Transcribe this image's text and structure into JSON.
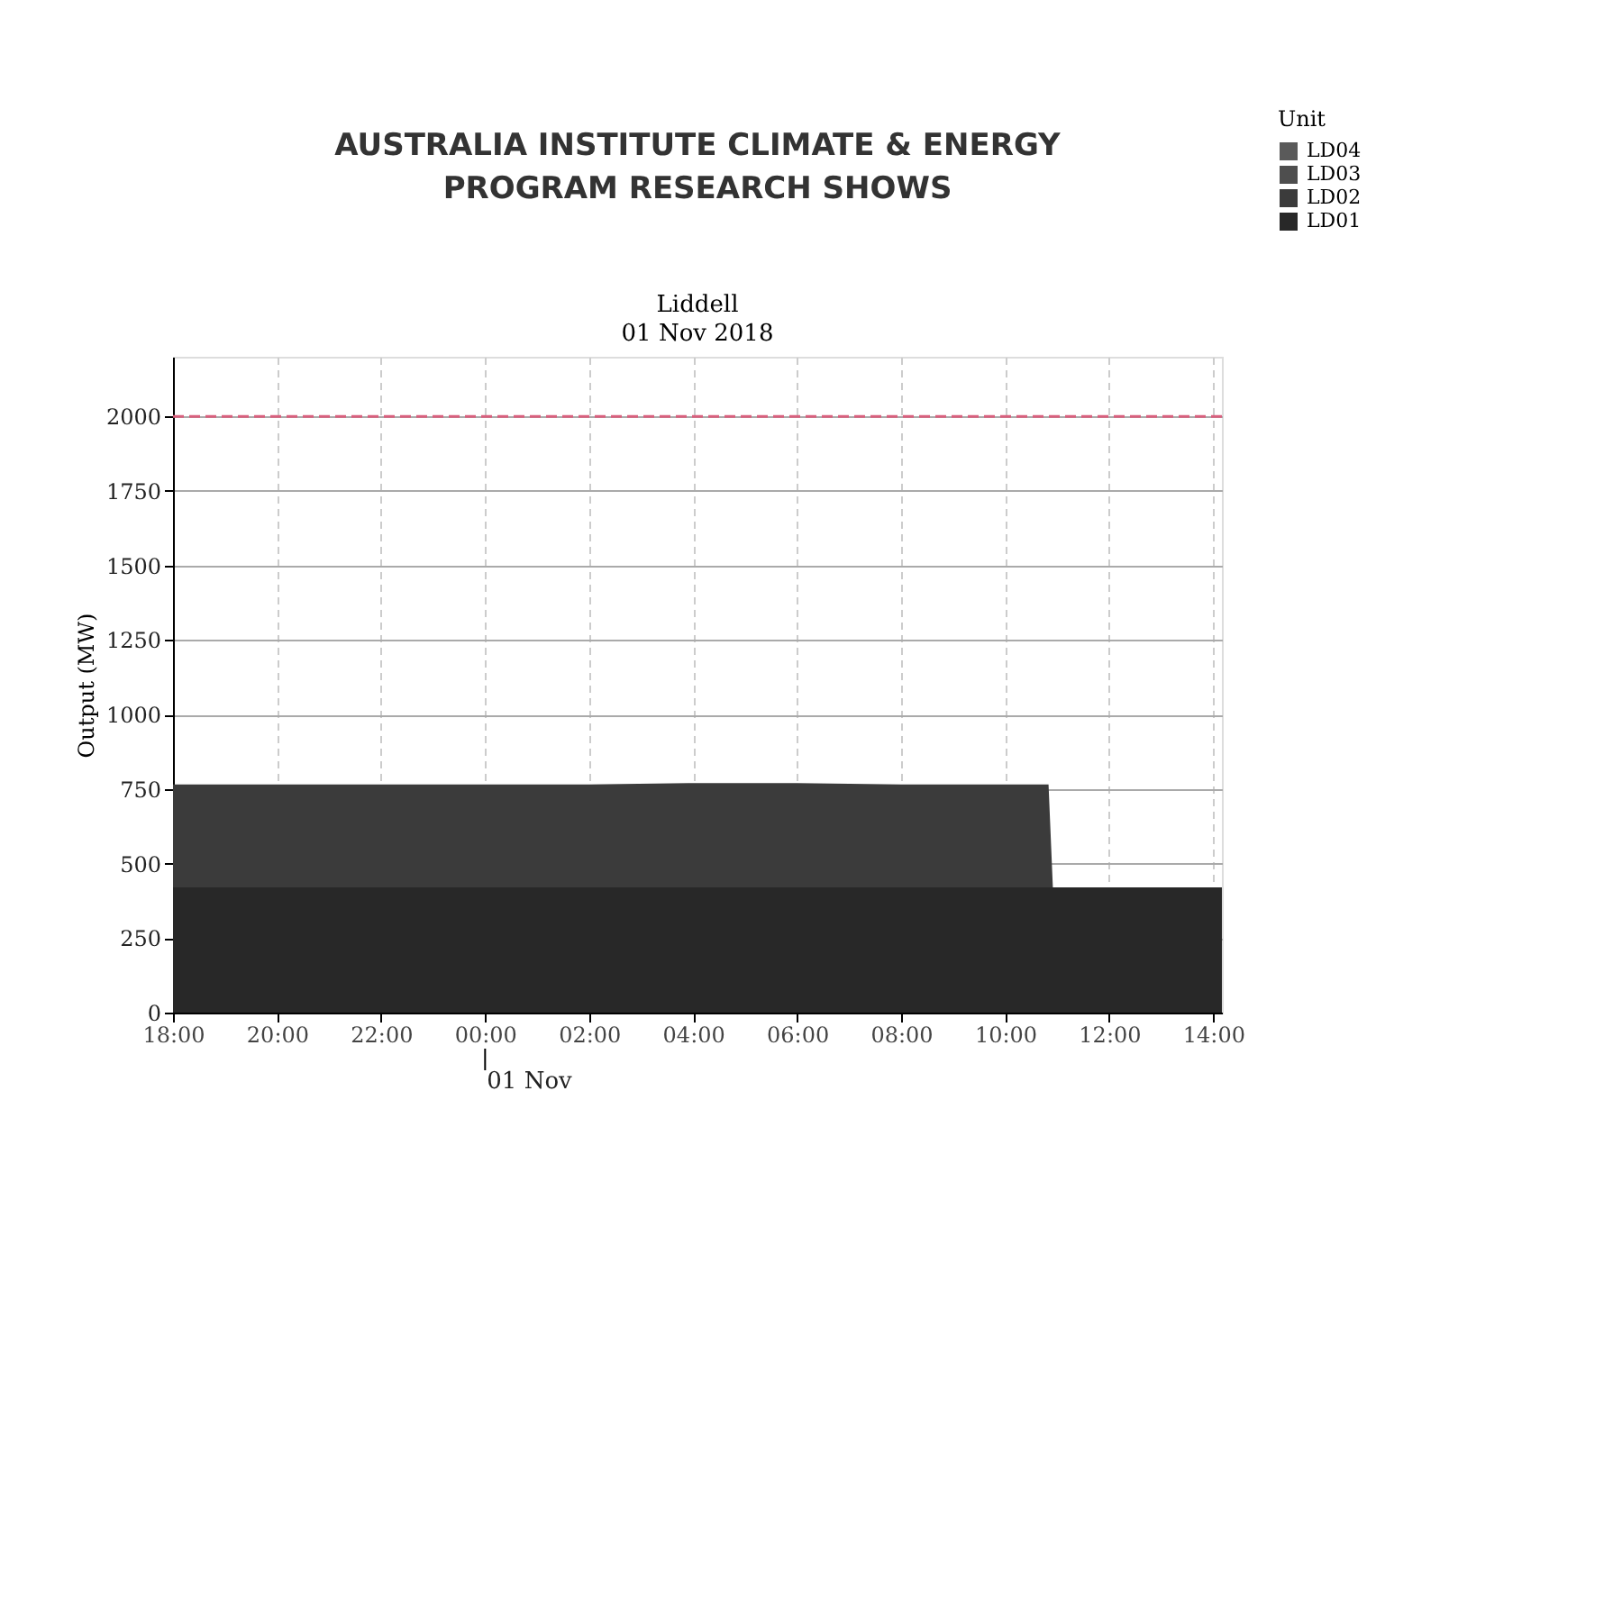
{
  "chart_data": {
    "type": "area",
    "stacked": true,
    "title": "Liddell",
    "subtitle": "01 Nov 2018",
    "annotations": [
      "AUSTRALIA INSTITUTE CLIMATE & ENERGY PROGRAM RESEARCH SHOWS",
      "01 Nov"
    ],
    "ylabel": "Output (MW)",
    "legend_title": "Unit",
    "legend": "right",
    "x": [
      "2018-10-31T18:00",
      "2018-10-31T20:00",
      "2018-10-31T22:00",
      "2018-11-01T00:00",
      "2018-11-01T02:00",
      "2018-11-01T04:00",
      "2018-11-01T06:00",
      "2018-11-01T08:00",
      "2018-11-01T10:00",
      "2018-11-01T10:50",
      "2018-11-01T10:55",
      "2018-11-01T12:00",
      "2018-11-01T14:10"
    ],
    "series": [
      {
        "name": "LD04",
        "color": "#5a5a5a",
        "values": [
          null,
          null,
          null,
          null,
          null,
          null,
          null,
          null,
          null,
          null,
          null,
          null,
          null
        ]
      },
      {
        "name": "LD03",
        "color": "#4e4e4e",
        "values": [
          null,
          null,
          null,
          null,
          null,
          null,
          null,
          null,
          null,
          null,
          null,
          null,
          null
        ]
      },
      {
        "name": "LD02",
        "color": "#3b3b3b",
        "values": [
          345,
          345,
          345,
          345,
          345,
          350,
          350,
          345,
          345,
          345,
          0,
          0,
          0
        ]
      },
      {
        "name": "LD01",
        "color": "#282828",
        "values": [
          420,
          420,
          420,
          420,
          420,
          420,
          420,
          420,
          420,
          420,
          420,
          420,
          420
        ]
      }
    ],
    "xlim": [
      "2018-10-31T18:00",
      "2018-11-01T14:10"
    ],
    "xticks": [
      {
        "value": "2018-10-31T18:00",
        "label": "18:00"
      },
      {
        "value": "2018-10-31T20:00",
        "label": "20:00"
      },
      {
        "value": "2018-10-31T22:00",
        "label": "22:00"
      },
      {
        "value": "2018-11-01T00:00",
        "label": "00:00"
      },
      {
        "value": "2018-11-01T02:00",
        "label": "02:00"
      },
      {
        "value": "2018-11-01T04:00",
        "label": "04:00"
      },
      {
        "value": "2018-11-01T06:00",
        "label": "06:00"
      },
      {
        "value": "2018-11-01T08:00",
        "label": "08:00"
      },
      {
        "value": "2018-11-01T10:00",
        "label": "10:00"
      },
      {
        "value": "2018-11-01T12:00",
        "label": "12:00"
      },
      {
        "value": "2018-11-01T14:00",
        "label": "14:00"
      }
    ],
    "ylim": [
      0,
      2200
    ],
    "yticks": [
      0,
      250,
      500,
      750,
      1000,
      1250,
      1500,
      1750,
      2000
    ],
    "ref_lines": [
      {
        "axis": "y",
        "value": 2000,
        "color": "#d9607e",
        "line_style": "dashed"
      }
    ],
    "grid": true
  }
}
